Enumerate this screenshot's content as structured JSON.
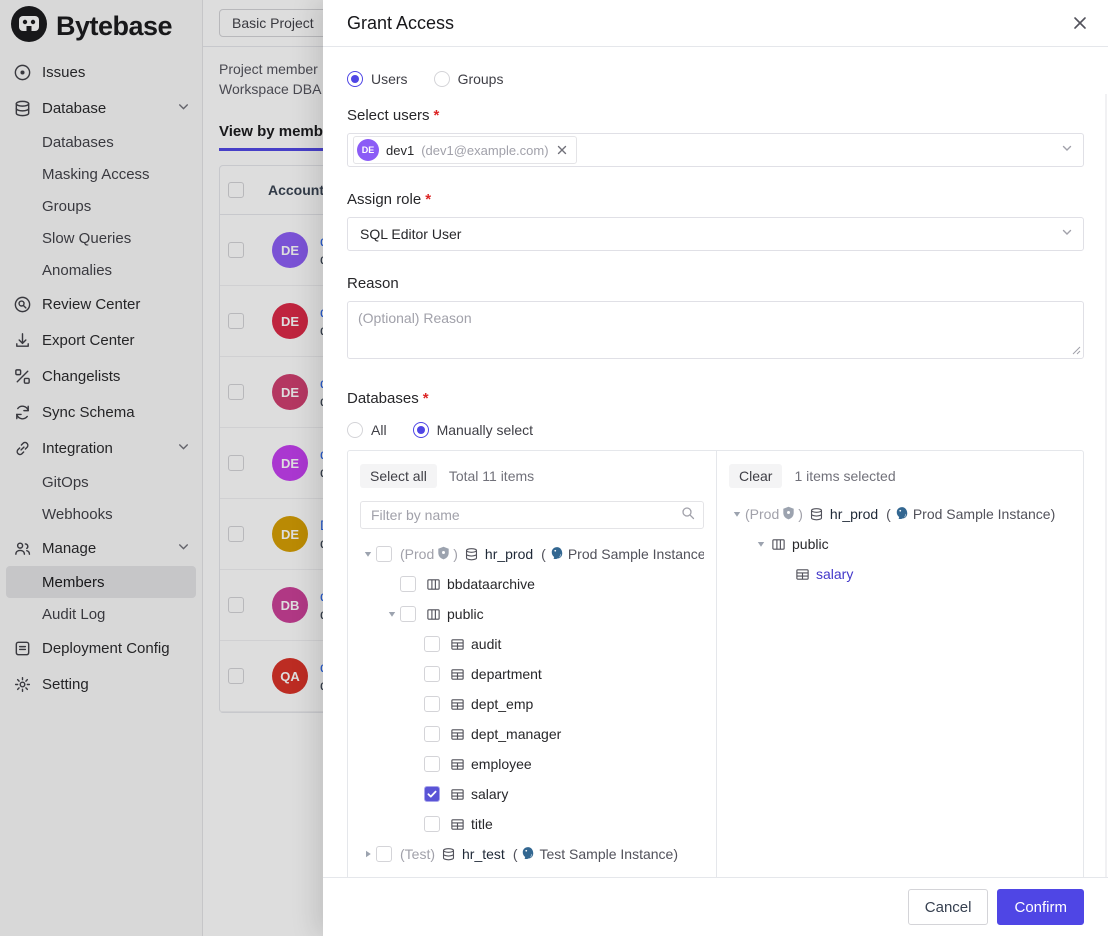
{
  "sidebar": {
    "brand": "Bytebase",
    "items": [
      {
        "label": "Issues",
        "icon": "issue-icon",
        "type": "top"
      },
      {
        "label": "Database",
        "icon": "database-icon",
        "type": "top",
        "chevron": true
      },
      {
        "label": "Databases",
        "type": "sub"
      },
      {
        "label": "Masking Access",
        "type": "sub"
      },
      {
        "label": "Groups",
        "type": "sub"
      },
      {
        "label": "Slow Queries",
        "type": "sub"
      },
      {
        "label": "Anomalies",
        "type": "sub"
      },
      {
        "label": "Review Center",
        "icon": "review-center-icon",
        "type": "top"
      },
      {
        "label": "Export Center",
        "icon": "export-center-icon",
        "type": "top"
      },
      {
        "label": "Changelists",
        "icon": "changelists-icon",
        "type": "top"
      },
      {
        "label": "Sync Schema",
        "icon": "sync-schema-icon",
        "type": "top"
      },
      {
        "label": "Integration",
        "icon": "integration-icon",
        "type": "top",
        "chevron": true
      },
      {
        "label": "GitOps",
        "type": "sub"
      },
      {
        "label": "Webhooks",
        "type": "sub"
      },
      {
        "label": "Manage",
        "icon": "manage-icon",
        "type": "top",
        "chevron": true
      },
      {
        "label": "Members",
        "type": "sub",
        "active": true
      },
      {
        "label": "Audit Log",
        "type": "sub"
      },
      {
        "label": "Deployment Config",
        "icon": "deployment-config-icon",
        "type": "top"
      },
      {
        "label": "Setting",
        "icon": "settings-icon",
        "type": "top"
      }
    ]
  },
  "page": {
    "project_button": "Basic Project",
    "description_line1": "Project member",
    "description_line2": "Workspace DBA",
    "tab_label": "View by memb",
    "table": {
      "account_header": "Account",
      "rows": [
        {
          "initials": "DE",
          "color": "#8b5cf6",
          "link": "de",
          "sub": "de"
        },
        {
          "initials": "DE",
          "color": "#dc2645",
          "link": "de",
          "sub": "de"
        },
        {
          "initials": "DE",
          "color": "#cf3d6e",
          "link": "de",
          "sub": "de"
        },
        {
          "initials": "DE",
          "color": "#c33df0",
          "link": "de",
          "sub": "de"
        },
        {
          "initials": "DE",
          "color": "#d69e00",
          "link": "D",
          "sub": "de"
        },
        {
          "initials": "DB",
          "color": "#cb3e97",
          "link": "db",
          "sub": "db"
        },
        {
          "initials": "QA",
          "color": "#d93025",
          "link": "qa",
          "sub": "qa"
        }
      ]
    }
  },
  "modal": {
    "title": "Grant Access",
    "member_type": {
      "options": [
        "Users",
        "Groups"
      ],
      "selected": "Users"
    },
    "select_users": {
      "label": "Select users",
      "tag": {
        "initials": "DE",
        "name": "dev1",
        "email": "(dev1@example.com)"
      }
    },
    "assign_role": {
      "label": "Assign role",
      "value": "SQL Editor User"
    },
    "reason": {
      "label": "Reason",
      "placeholder": "(Optional) Reason"
    },
    "databases": {
      "label": "Databases",
      "options": [
        "All",
        "Manually select"
      ],
      "selected": "Manually select"
    },
    "picker": {
      "select_all": "Select all",
      "total": "Total 11 items",
      "filter_placeholder": "Filter by name",
      "clear": "Clear",
      "selected_count": "1 items selected",
      "left_tree": [
        {
          "level": 0,
          "caret": "down",
          "checkbox": "unchecked",
          "env": {
            "text": "(Prod",
            "shield": true,
            "close": ")"
          },
          "icon": "db-icon",
          "name": "hr_prod",
          "inst": true,
          "instance": {
            "open": "(",
            "name": "Prod Sample Instance",
            "close": ")"
          }
        },
        {
          "level": 1,
          "checkbox": "unchecked",
          "icon": "schema-icon",
          "name": "bbdataarchive"
        },
        {
          "level": 1,
          "caret": "down",
          "checkbox": "unchecked",
          "icon": "schema-icon",
          "name": "public"
        },
        {
          "level": 2,
          "checkbox": "unchecked",
          "icon": "table-icon",
          "name": "audit"
        },
        {
          "level": 2,
          "checkbox": "unchecked",
          "icon": "table-icon",
          "name": "department"
        },
        {
          "level": 2,
          "checkbox": "unchecked",
          "icon": "table-icon",
          "name": "dept_emp"
        },
        {
          "level": 2,
          "checkbox": "unchecked",
          "icon": "table-icon",
          "name": "dept_manager"
        },
        {
          "level": 2,
          "checkbox": "unchecked",
          "icon": "table-icon",
          "name": "employee"
        },
        {
          "level": 2,
          "checkbox": "checked",
          "icon": "table-icon",
          "name": "salary"
        },
        {
          "level": 2,
          "checkbox": "unchecked",
          "icon": "table-icon",
          "name": "title"
        },
        {
          "level": 0,
          "caret": "right",
          "checkbox": "unchecked",
          "env": {
            "text": "(Test)",
            "shield": false,
            "close": ""
          },
          "icon": "db-icon",
          "name": "hr_test",
          "inst": true,
          "instance": {
            "open": "(",
            "name": "Test Sample Instance",
            "close": ")"
          }
        }
      ],
      "right_tree": [
        {
          "level": 0,
          "caret": "down",
          "env": {
            "text": "(Prod",
            "shield": true,
            "close": ")"
          },
          "icon": "db-icon",
          "name": "hr_prod",
          "inst": true,
          "instance": {
            "open": "(",
            "name": "Prod Sample Instance",
            "close": ")"
          }
        },
        {
          "level": 1,
          "caret": "down",
          "icon": "schema-icon",
          "name": "public"
        },
        {
          "level": 2,
          "icon": "table-icon",
          "name": "salary",
          "highlight": true
        }
      ]
    },
    "footer": {
      "cancel": "Cancel",
      "confirm": "Confirm"
    }
  },
  "colors": {
    "accent": "#4f46e5",
    "link": "#2563eb",
    "checked_checkbox": "#5a54d6",
    "tab_underline": "#4f46e5"
  }
}
